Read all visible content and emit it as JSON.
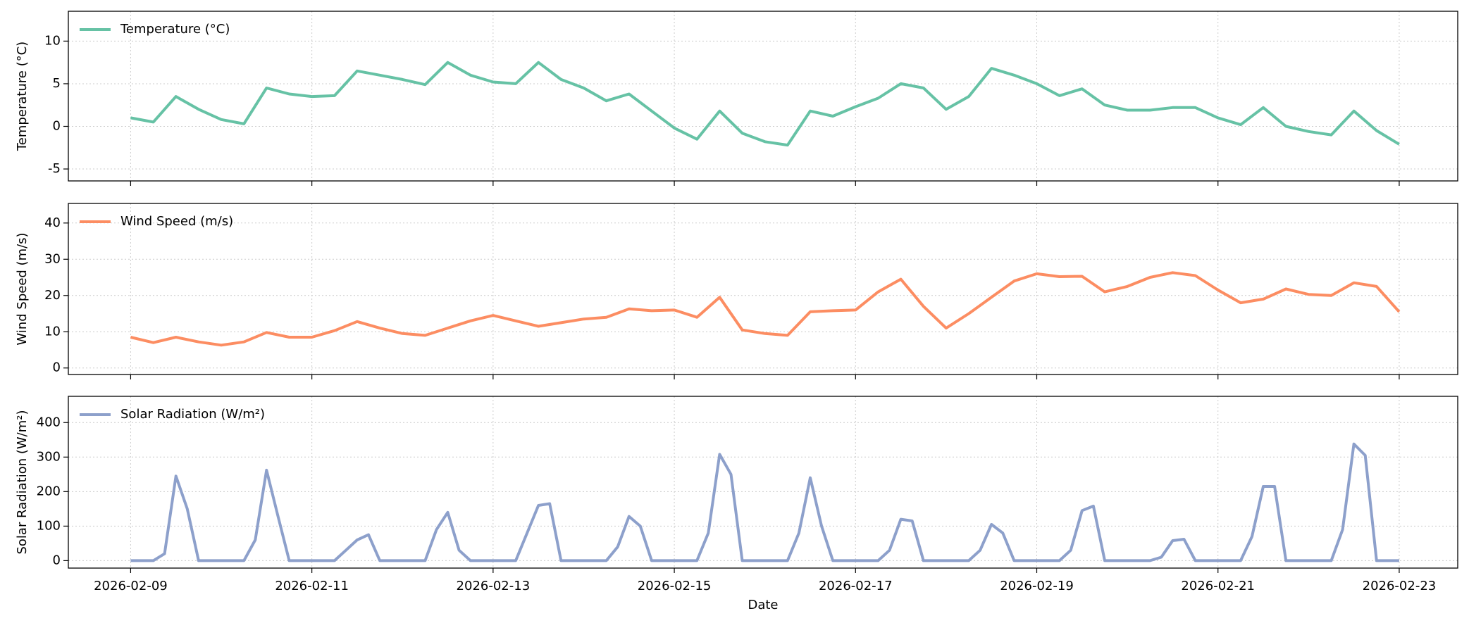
{
  "chart_data": [
    {
      "type": "line",
      "ylabel": "Temperature (°C)",
      "grid": true,
      "legend": "upper left",
      "x": [
        "2026-02-09 00:00",
        "2026-02-09 06:00",
        "2026-02-09 12:00",
        "2026-02-09 18:00",
        "2026-02-10 00:00",
        "2026-02-10 06:00",
        "2026-02-10 12:00",
        "2026-02-10 18:00",
        "2026-02-11 00:00",
        "2026-02-11 06:00",
        "2026-02-11 12:00",
        "2026-02-11 18:00",
        "2026-02-12 00:00",
        "2026-02-12 06:00",
        "2026-02-12 12:00",
        "2026-02-12 18:00",
        "2026-02-13 00:00",
        "2026-02-13 06:00",
        "2026-02-13 12:00",
        "2026-02-13 18:00",
        "2026-02-14 00:00",
        "2026-02-14 06:00",
        "2026-02-14 12:00",
        "2026-02-14 18:00",
        "2026-02-15 00:00",
        "2026-02-15 06:00",
        "2026-02-15 12:00",
        "2026-02-15 18:00",
        "2026-02-16 00:00",
        "2026-02-16 06:00",
        "2026-02-16 12:00",
        "2026-02-16 18:00",
        "2026-02-17 00:00",
        "2026-02-17 06:00",
        "2026-02-17 12:00",
        "2026-02-17 18:00",
        "2026-02-18 00:00",
        "2026-02-18 06:00",
        "2026-02-18 12:00",
        "2026-02-18 18:00",
        "2026-02-19 00:00",
        "2026-02-19 06:00",
        "2026-02-19 12:00",
        "2026-02-19 18:00",
        "2026-02-20 00:00",
        "2026-02-20 06:00",
        "2026-02-20 12:00",
        "2026-02-20 18:00",
        "2026-02-21 00:00",
        "2026-02-21 06:00",
        "2026-02-21 12:00",
        "2026-02-21 18:00",
        "2026-02-22 00:00",
        "2026-02-22 06:00",
        "2026-02-22 12:00",
        "2026-02-22 18:00",
        "2026-02-23 00:00"
      ],
      "series": [
        {
          "name": "Temperature (°C)",
          "color": "#66c2a5",
          "values": [
            1.0,
            0.5,
            3.5,
            2.0,
            0.8,
            0.3,
            4.5,
            3.8,
            3.5,
            3.6,
            6.5,
            6.0,
            5.5,
            4.9,
            7.5,
            6.0,
            5.2,
            5.0,
            7.5,
            5.5,
            4.5,
            3.0,
            3.8,
            1.8,
            -0.2,
            -1.5,
            1.8,
            -0.8,
            -1.8,
            -2.2,
            1.8,
            1.2,
            2.3,
            3.3,
            5.0,
            4.5,
            2.0,
            3.5,
            6.8,
            6.0,
            5.0,
            3.6,
            4.4,
            2.5,
            1.9,
            1.9,
            2.2,
            2.2,
            1.0,
            0.2,
            2.2,
            0.0,
            -0.6,
            -1.0,
            1.8,
            -0.5,
            -2.1
          ]
        }
      ],
      "xlim": [
        "2026-02-08 07:30",
        "2026-02-23 15:30"
      ],
      "ylim": [
        -6.4,
        13.5
      ],
      "yticks": [
        -5,
        0,
        5,
        10
      ]
    },
    {
      "type": "line",
      "ylabel": "Wind Speed (m/s)",
      "grid": true,
      "legend": "upper left",
      "x": [
        "2026-02-09 00:00",
        "2026-02-09 06:00",
        "2026-02-09 12:00",
        "2026-02-09 18:00",
        "2026-02-10 00:00",
        "2026-02-10 06:00",
        "2026-02-10 12:00",
        "2026-02-10 18:00",
        "2026-02-11 00:00",
        "2026-02-11 06:00",
        "2026-02-11 12:00",
        "2026-02-11 18:00",
        "2026-02-12 00:00",
        "2026-02-12 06:00",
        "2026-02-12 12:00",
        "2026-02-12 18:00",
        "2026-02-13 00:00",
        "2026-02-13 06:00",
        "2026-02-13 12:00",
        "2026-02-13 18:00",
        "2026-02-14 00:00",
        "2026-02-14 06:00",
        "2026-02-14 12:00",
        "2026-02-14 18:00",
        "2026-02-15 00:00",
        "2026-02-15 06:00",
        "2026-02-15 12:00",
        "2026-02-15 18:00",
        "2026-02-16 00:00",
        "2026-02-16 06:00",
        "2026-02-16 12:00",
        "2026-02-16 18:00",
        "2026-02-17 00:00",
        "2026-02-17 06:00",
        "2026-02-17 12:00",
        "2026-02-17 18:00",
        "2026-02-18 00:00",
        "2026-02-18 06:00",
        "2026-02-18 12:00",
        "2026-02-18 18:00",
        "2026-02-19 00:00",
        "2026-02-19 06:00",
        "2026-02-19 12:00",
        "2026-02-19 18:00",
        "2026-02-20 00:00",
        "2026-02-20 06:00",
        "2026-02-20 12:00",
        "2026-02-20 18:00",
        "2026-02-21 00:00",
        "2026-02-21 06:00",
        "2026-02-21 12:00",
        "2026-02-21 18:00",
        "2026-02-22 00:00",
        "2026-02-22 06:00",
        "2026-02-22 12:00",
        "2026-02-22 18:00",
        "2026-02-23 00:00"
      ],
      "series": [
        {
          "name": "Wind Speed (m/s)",
          "color": "#fc8d62",
          "values": [
            8.5,
            7.0,
            8.5,
            7.2,
            6.3,
            7.2,
            9.8,
            8.5,
            8.5,
            10.3,
            12.8,
            11.0,
            9.5,
            9.0,
            11.0,
            13.0,
            14.5,
            13.0,
            11.5,
            12.5,
            13.5,
            14.0,
            16.3,
            15.8,
            16.0,
            14.0,
            19.5,
            10.5,
            9.5,
            9.0,
            15.5,
            15.8,
            16.0,
            21.0,
            24.5,
            17.0,
            11.0,
            15.0,
            19.5,
            24.0,
            26.0,
            25.2,
            25.3,
            21.0,
            22.5,
            25.0,
            26.3,
            25.5,
            21.5,
            18.0,
            19.0,
            21.8,
            20.3,
            20.0,
            23.5,
            22.5,
            15.5
          ]
        }
      ],
      "xlim": [
        "2026-02-08 07:30",
        "2026-02-23 15:30"
      ],
      "ylim": [
        -1.8,
        45.4
      ],
      "yticks": [
        0,
        10,
        20,
        30,
        40
      ]
    },
    {
      "type": "line",
      "ylabel": "Solar Radiation (W/m²)",
      "xlabel": "Date",
      "grid": true,
      "legend": "upper left",
      "x": [
        "2026-02-09 00:00",
        "2026-02-09 03:00",
        "2026-02-09 06:00",
        "2026-02-09 09:00",
        "2026-02-09 12:00",
        "2026-02-09 15:00",
        "2026-02-09 18:00",
        "2026-02-09 21:00",
        "2026-02-10 00:00",
        "2026-02-10 03:00",
        "2026-02-10 06:00",
        "2026-02-10 09:00",
        "2026-02-10 12:00",
        "2026-02-10 15:00",
        "2026-02-10 18:00",
        "2026-02-10 21:00",
        "2026-02-11 00:00",
        "2026-02-11 03:00",
        "2026-02-11 06:00",
        "2026-02-11 09:00",
        "2026-02-11 12:00",
        "2026-02-11 15:00",
        "2026-02-11 18:00",
        "2026-02-11 21:00",
        "2026-02-12 00:00",
        "2026-02-12 03:00",
        "2026-02-12 06:00",
        "2026-02-12 09:00",
        "2026-02-12 12:00",
        "2026-02-12 15:00",
        "2026-02-12 18:00",
        "2026-02-12 21:00",
        "2026-02-13 00:00",
        "2026-02-13 03:00",
        "2026-02-13 06:00",
        "2026-02-13 09:00",
        "2026-02-13 12:00",
        "2026-02-13 15:00",
        "2026-02-13 18:00",
        "2026-02-13 21:00",
        "2026-02-14 00:00",
        "2026-02-14 03:00",
        "2026-02-14 06:00",
        "2026-02-14 09:00",
        "2026-02-14 12:00",
        "2026-02-14 15:00",
        "2026-02-14 18:00",
        "2026-02-14 21:00",
        "2026-02-15 00:00",
        "2026-02-15 03:00",
        "2026-02-15 06:00",
        "2026-02-15 09:00",
        "2026-02-15 12:00",
        "2026-02-15 15:00",
        "2026-02-15 18:00",
        "2026-02-15 21:00",
        "2026-02-16 00:00",
        "2026-02-16 03:00",
        "2026-02-16 06:00",
        "2026-02-16 09:00",
        "2026-02-16 12:00",
        "2026-02-16 15:00",
        "2026-02-16 18:00",
        "2026-02-16 21:00",
        "2026-02-17 00:00",
        "2026-02-17 03:00",
        "2026-02-17 06:00",
        "2026-02-17 09:00",
        "2026-02-17 12:00",
        "2026-02-17 15:00",
        "2026-02-17 18:00",
        "2026-02-17 21:00",
        "2026-02-18 00:00",
        "2026-02-18 03:00",
        "2026-02-18 06:00",
        "2026-02-18 09:00",
        "2026-02-18 12:00",
        "2026-02-18 15:00",
        "2026-02-18 18:00",
        "2026-02-18 21:00",
        "2026-02-19 00:00",
        "2026-02-19 03:00",
        "2026-02-19 06:00",
        "2026-02-19 09:00",
        "2026-02-19 12:00",
        "2026-02-19 15:00",
        "2026-02-19 18:00",
        "2026-02-19 21:00",
        "2026-02-20 00:00",
        "2026-02-20 03:00",
        "2026-02-20 06:00",
        "2026-02-20 09:00",
        "2026-02-20 12:00",
        "2026-02-20 15:00",
        "2026-02-20 18:00",
        "2026-02-20 21:00",
        "2026-02-21 00:00",
        "2026-02-21 03:00",
        "2026-02-21 06:00",
        "2026-02-21 09:00",
        "2026-02-21 12:00",
        "2026-02-21 15:00",
        "2026-02-21 18:00",
        "2026-02-21 21:00",
        "2026-02-22 00:00",
        "2026-02-22 03:00",
        "2026-02-22 06:00",
        "2026-02-22 09:00",
        "2026-02-22 12:00",
        "2026-02-22 15:00",
        "2026-02-22 18:00",
        "2026-02-22 21:00",
        "2026-02-23 00:00"
      ],
      "series": [
        {
          "name": "Solar Radiation (W/m²)",
          "color": "#8da0cb",
          "values": [
            0,
            0,
            0,
            20,
            245,
            150,
            0,
            0,
            0,
            0,
            0,
            60,
            262,
            130,
            0,
            0,
            0,
            0,
            0,
            30,
            60,
            75,
            0,
            0,
            0,
            0,
            0,
            90,
            140,
            30,
            0,
            0,
            0,
            0,
            0,
            80,
            160,
            165,
            0,
            0,
            0,
            0,
            0,
            40,
            128,
            100,
            0,
            0,
            0,
            0,
            0,
            80,
            308,
            250,
            0,
            0,
            0,
            0,
            0,
            80,
            240,
            100,
            0,
            0,
            0,
            0,
            0,
            30,
            120,
            115,
            0,
            0,
            0,
            0,
            0,
            30,
            105,
            80,
            0,
            0,
            0,
            0,
            0,
            30,
            145,
            158,
            0,
            0,
            0,
            0,
            0,
            10,
            58,
            62,
            0,
            0,
            0,
            0,
            0,
            70,
            215,
            215,
            0,
            0,
            0,
            0,
            0,
            90,
            338,
            305,
            0,
            0,
            0
          ]
        }
      ],
      "xlim": [
        "2026-02-08 07:30",
        "2026-02-23 15:30"
      ],
      "ylim": [
        -21.6,
        476
      ],
      "yticks": [
        0,
        100,
        200,
        300,
        400
      ],
      "xticks": [
        "2026-02-09",
        "2026-02-11",
        "2026-02-13",
        "2026-02-15",
        "2026-02-17",
        "2026-02-19",
        "2026-02-21",
        "2026-02-23"
      ]
    }
  ]
}
